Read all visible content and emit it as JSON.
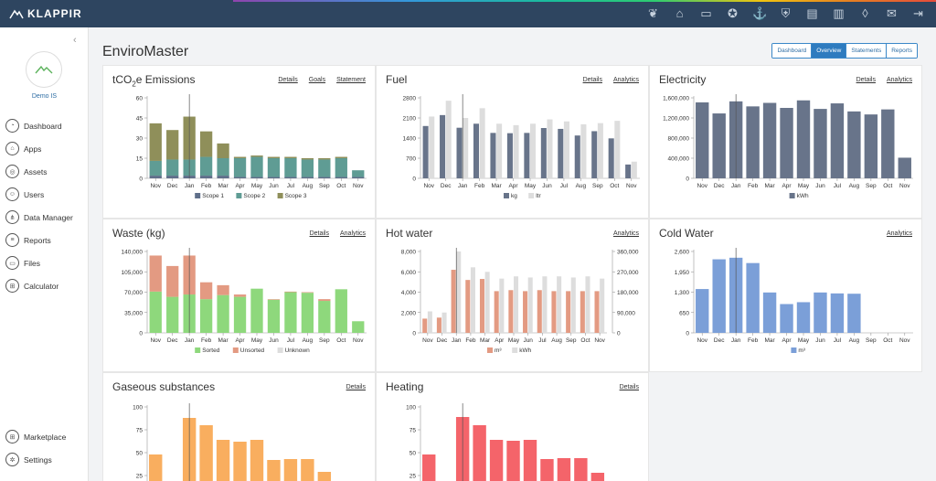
{
  "app": {
    "logo": "KLAPPIR",
    "title": "EnviroMaster"
  },
  "colors": {
    "topbar": "#2e4560",
    "accent": "#2e7bbf"
  },
  "top_icons": [
    "leaf-icon",
    "bank-icon",
    "truck-icon",
    "medal-icon",
    "anchor-icon",
    "shield-check-icon",
    "clipboard-icon",
    "book-icon",
    "drop-icon",
    "mail-icon",
    "logout-icon"
  ],
  "sidebar": {
    "org": "Demo IS",
    "items": [
      {
        "label": "Dashboard",
        "icon": "dashboard-icon",
        "glyph": "◔"
      },
      {
        "label": "Apps",
        "icon": "apps-icon",
        "glyph": "⌂"
      },
      {
        "label": "Assets",
        "icon": "assets-icon",
        "glyph": "◎"
      },
      {
        "label": "Users",
        "icon": "users-icon",
        "glyph": "☺"
      },
      {
        "label": "Data Manager",
        "icon": "data-manager-icon",
        "glyph": "⋔"
      },
      {
        "label": "Reports",
        "icon": "reports-icon",
        "glyph": "≡"
      },
      {
        "label": "Files",
        "icon": "files-icon",
        "glyph": "▭"
      },
      {
        "label": "Calculator",
        "icon": "calculator-icon",
        "glyph": "⊞"
      }
    ],
    "bottom": [
      {
        "label": "Marketplace",
        "icon": "marketplace-icon",
        "glyph": "⊞"
      },
      {
        "label": "Settings",
        "icon": "settings-icon",
        "glyph": "✲"
      }
    ]
  },
  "tabs": [
    {
      "label": "Dashboard",
      "active": false
    },
    {
      "label": "Overview",
      "active": true
    },
    {
      "label": "Statements",
      "active": false
    },
    {
      "label": "Reports",
      "active": false
    }
  ],
  "panels": {
    "emissions": {
      "title_pre": "tCO",
      "title_sub": "2",
      "title_post": "e Emissions",
      "links": [
        "Details",
        "Goals",
        "Statement"
      ]
    },
    "fuel": {
      "title": "Fuel",
      "links": [
        "Details",
        "Analytics"
      ]
    },
    "electricity": {
      "title": "Electricity",
      "links": [
        "Details",
        "Analytics"
      ]
    },
    "waste": {
      "title": "Waste (kg)",
      "links": [
        "Details",
        "Analytics"
      ]
    },
    "hotwater": {
      "title": "Hot water",
      "links": [
        "Analytics"
      ]
    },
    "coldwater": {
      "title": "Cold Water",
      "links": [
        "Analytics"
      ]
    },
    "gaseous": {
      "title": "Gaseous substances",
      "links": [
        "Details"
      ]
    },
    "heating": {
      "title": "Heating",
      "links": [
        "Details"
      ]
    }
  },
  "chart_data": [
    {
      "id": "emissions",
      "type": "bar",
      "stacked": true,
      "categories": [
        "Nov",
        "Dec",
        "Jan",
        "Feb",
        "Mar",
        "Apr",
        "May",
        "Jun",
        "Jul",
        "Aug",
        "Sep",
        "Oct",
        "Nov"
      ],
      "ylim": [
        0,
        60
      ],
      "yticks": [
        0,
        15,
        30,
        45,
        60
      ],
      "series": [
        {
          "name": "Scope 1",
          "color": "#5f6f8a",
          "values": [
            2,
            2,
            2,
            2,
            2,
            1,
            1,
            1,
            1,
            1,
            1,
            1,
            1
          ]
        },
        {
          "name": "Scope 2",
          "color": "#5f9c94",
          "values": [
            11,
            12,
            12,
            14,
            13,
            14,
            15,
            14,
            14,
            13,
            13,
            14,
            5
          ]
        },
        {
          "name": "Scope 3",
          "color": "#8f8f5a",
          "values": [
            28,
            22,
            32,
            19,
            11,
            1,
            1,
            1,
            1,
            1,
            1,
            1,
            0
          ]
        }
      ],
      "marker_index": 2
    },
    {
      "id": "fuel",
      "type": "bar",
      "categories": [
        "Nov",
        "Dec",
        "Jan",
        "Feb",
        "Mar",
        "Apr",
        "May",
        "Jun",
        "Jul",
        "Aug",
        "Sep",
        "Oct",
        "Nov"
      ],
      "ylim": [
        0,
        2800
      ],
      "yticks": [
        0,
        700,
        1400,
        2100,
        2800
      ],
      "series": [
        {
          "name": "kg",
          "color": "#68748a",
          "values": [
            1820,
            2200,
            1760,
            1900,
            1580,
            1570,
            1580,
            1750,
            1720,
            1490,
            1640,
            1390,
            480
          ]
        },
        {
          "name": "ltr",
          "color": "#dddddd",
          "values": [
            2150,
            2700,
            2100,
            2440,
            1900,
            1850,
            1900,
            2050,
            1980,
            1880,
            1920,
            2000,
            580
          ]
        }
      ],
      "marker_index": 2
    },
    {
      "id": "electricity",
      "type": "bar",
      "categories": [
        "Nov",
        "Dec",
        "Jan",
        "Feb",
        "Mar",
        "Apr",
        "May",
        "Jun",
        "Jul",
        "Aug",
        "Sep",
        "Oct",
        "Nov"
      ],
      "ylim": [
        0,
        1600000
      ],
      "yticks": [
        0,
        400000,
        800000,
        1200000,
        1600000
      ],
      "ytick_labels": [
        "0",
        "400,000",
        "800,000",
        "1,200,000",
        "1,600,000"
      ],
      "series": [
        {
          "name": "kWh",
          "color": "#68748a",
          "values": [
            1510000,
            1290000,
            1530000,
            1430000,
            1500000,
            1400000,
            1550000,
            1380000,
            1490000,
            1330000,
            1270000,
            1370000,
            410000
          ]
        }
      ],
      "marker_index": 2
    },
    {
      "id": "waste",
      "type": "bar",
      "stacked": true,
      "categories": [
        "Nov",
        "Dec",
        "Jan",
        "Feb",
        "Mar",
        "Apr",
        "May",
        "Jun",
        "Jul",
        "Aug",
        "Sep",
        "Oct",
        "Nov"
      ],
      "ylim": [
        0,
        140000
      ],
      "yticks": [
        0,
        35000,
        70000,
        105000,
        140000
      ],
      "ytick_labels": [
        "0",
        "35,000",
        "70,000",
        "105,000",
        "140,000"
      ],
      "series": [
        {
          "name": "Sorted",
          "color": "#8ed87c",
          "values": [
            71000,
            62000,
            66000,
            58000,
            65000,
            62000,
            76000,
            57000,
            70000,
            69000,
            55000,
            75000,
            20000
          ]
        },
        {
          "name": "Unsorted",
          "color": "#e39a82",
          "values": [
            62000,
            53000,
            67000,
            29000,
            17000,
            4000,
            0,
            1000,
            1000,
            1000,
            3000,
            0,
            0
          ]
        },
        {
          "name": "Unknown",
          "color": "#dddddd",
          "values": [
            0,
            0,
            0,
            0,
            0,
            0,
            0,
            0,
            0,
            0,
            0,
            0,
            0
          ]
        }
      ],
      "marker_index": 2
    },
    {
      "id": "hotwater",
      "type": "bar",
      "categories": [
        "Nov",
        "Dec",
        "Jan",
        "Feb",
        "Mar",
        "Apr",
        "May",
        "Jun",
        "Jul",
        "Aug",
        "Sep",
        "Oct",
        "Nov"
      ],
      "ylim": [
        0,
        8000
      ],
      "yticks": [
        0,
        2000,
        4000,
        6000,
        8000
      ],
      "ytick_labels": [
        "0",
        "2,000",
        "4,000",
        "6,000",
        "8,000"
      ],
      "y2lim": [
        0,
        360000
      ],
      "y2ticks": [
        0,
        90000,
        180000,
        270000,
        360000
      ],
      "y2tick_labels": [
        "0",
        "90,000",
        "180,000",
        "270,000",
        "360,000"
      ],
      "series": [
        {
          "name": "m³",
          "color": "#e39a82",
          "values": [
            1400,
            1500,
            6200,
            5200,
            5300,
            4100,
            4200,
            4100,
            4200,
            4100,
            4100,
            4100,
            4100
          ]
        },
        {
          "name": "kWh",
          "color": "#dddddd",
          "values": [
            95000,
            90000,
            360000,
            290000,
            270000,
            240000,
            250000,
            245000,
            250000,
            250000,
            245000,
            250000,
            240000
          ],
          "axis": "y2"
        }
      ],
      "marker_index": 2
    },
    {
      "id": "coldwater",
      "type": "bar",
      "categories": [
        "Nov",
        "Dec",
        "Jan",
        "Feb",
        "Mar",
        "Apr",
        "May",
        "Jun",
        "Jul",
        "Aug",
        "Sep",
        "Oct",
        "Nov"
      ],
      "ylim": [
        0,
        2600
      ],
      "yticks": [
        0,
        650,
        1300,
        1950,
        2600
      ],
      "ytick_labels": [
        "0",
        "650",
        "1,300",
        "1,950",
        "2,600"
      ],
      "series": [
        {
          "name": "m³",
          "color": "#7b9fd8",
          "values": [
            1400,
            2350,
            2400,
            2230,
            1290,
            920,
            980,
            1290,
            1260,
            1250,
            0,
            0,
            0
          ]
        }
      ],
      "marker_index": 2
    },
    {
      "id": "gaseous",
      "type": "bar",
      "categories": [
        "Nov",
        "Dec",
        "Jan",
        "Feb",
        "Mar",
        "Apr",
        "May",
        "Jun",
        "Jul",
        "Aug",
        "Sep",
        "Oct",
        "Nov"
      ],
      "ylim": [
        0,
        100
      ],
      "yticks": [
        25,
        50,
        75,
        100
      ],
      "series": [
        {
          "name": "",
          "color": "#f9ae5f",
          "values": [
            48,
            0,
            88,
            80,
            64,
            62,
            64,
            42,
            43,
            43,
            29,
            19,
            0
          ]
        }
      ],
      "marker_index": 2
    },
    {
      "id": "heating",
      "type": "bar",
      "categories": [
        "Nov",
        "Dec",
        "Jan",
        "Feb",
        "Mar",
        "Apr",
        "May",
        "Jun",
        "Jul",
        "Aug",
        "Sep",
        "Oct",
        "Nov"
      ],
      "ylim": [
        0,
        100
      ],
      "yticks": [
        25,
        50,
        75,
        100
      ],
      "series": [
        {
          "name": "",
          "color": "#f4646a",
          "values": [
            48,
            0,
            89,
            80,
            64,
            63,
            64,
            43,
            44,
            44,
            28,
            19,
            0
          ]
        }
      ],
      "marker_index": 2
    }
  ]
}
